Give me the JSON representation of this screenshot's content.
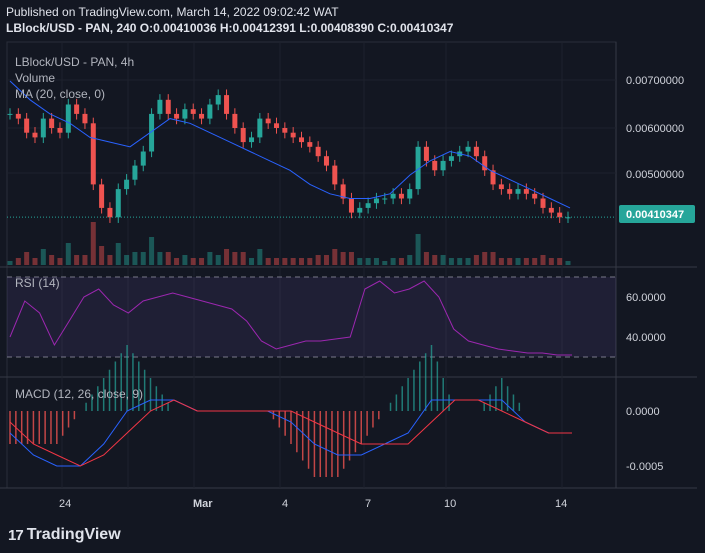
{
  "header": {
    "published": "Published on TradingView.com, March 14, 2022 09:02:42 WAT",
    "ohlc": "LBlock/USD - PAN, 240 O:0.00410036 H:0.00412391 L:0.00408390 C:0.00410347"
  },
  "footer": {
    "brand": "TradingView"
  },
  "colors": {
    "up": "#26a69a",
    "down": "#ef5350",
    "ma": "#2962ff",
    "rsi": "#9c27b0",
    "macd": "#2962ff",
    "signal": "#f23645"
  },
  "chart_data": {
    "type": "candlestick",
    "legend": {
      "symbol": "LBlock/USD - PAN, 4h",
      "volume": "Volume",
      "ma": "MA (20, close, 0)",
      "rsi": "RSI (14)",
      "macd": "MACD (12, 26, close, 9)"
    },
    "price_ticks": [
      "0.00700000",
      "0.00600000",
      "0.00500000"
    ],
    "price_tick_values": [
      0.007,
      0.006,
      0.005
    ],
    "last_price": "0.00410347",
    "last_price_value": 0.00410347,
    "rsi_ticks": [
      "60.0000",
      "40.0000"
    ],
    "rsi_bands": [
      70,
      30
    ],
    "macd_ticks": [
      "0.0000",
      "-0.0005"
    ],
    "x_ticks": [
      "24",
      "Mar",
      "4",
      "7",
      "10",
      "14"
    ],
    "close_path": [
      0.0063,
      0.0062,
      0.0059,
      0.0058,
      0.0062,
      0.006,
      0.0059,
      0.0065,
      0.0063,
      0.0061,
      0.0048,
      0.0043,
      0.0041,
      0.0047,
      0.0049,
      0.0052,
      0.0055,
      0.0063,
      0.0066,
      0.0063,
      0.0062,
      0.0064,
      0.0063,
      0.0062,
      0.0065,
      0.0067,
      0.0063,
      0.006,
      0.0057,
      0.0058,
      0.0062,
      0.0061,
      0.006,
      0.0059,
      0.0058,
      0.0057,
      0.0056,
      0.0054,
      0.0052,
      0.0048,
      0.0045,
      0.0042,
      0.0043,
      0.0044,
      0.0045,
      0.0045,
      0.0046,
      0.0045,
      0.0047,
      0.0056,
      0.0053,
      0.0051,
      0.0053,
      0.0054,
      0.0055,
      0.0056,
      0.0054,
      0.0051,
      0.0048,
      0.0047,
      0.0046,
      0.0047,
      0.0046,
      0.0045,
      0.0043,
      0.0042,
      0.0041,
      0.0041
    ],
    "ma_path": [
      0.007,
      0.0066,
      0.0063,
      0.0061,
      0.0058,
      0.0057,
      0.0056,
      0.0059,
      0.0062,
      0.0061,
      0.0059,
      0.0057,
      0.0055,
      0.0053,
      0.0051,
      0.0048,
      0.0046,
      0.0045,
      0.0045,
      0.0046,
      0.005,
      0.0053,
      0.0055,
      0.0054,
      0.0051,
      0.0049,
      0.0047,
      0.0045,
      0.0043
    ],
    "rsi_path": [
      40,
      58,
      52,
      36,
      48,
      60,
      64,
      56,
      52,
      58,
      60,
      62,
      60,
      58,
      56,
      54,
      48,
      38,
      34,
      36,
      38,
      38,
      39,
      40,
      64,
      68,
      62,
      64,
      68,
      60,
      44,
      38,
      36,
      34,
      33,
      32,
      32,
      31,
      31
    ],
    "macd_path": [
      -0.0002,
      -0.0004,
      -0.0005,
      -0.0005,
      -0.0003,
      0.0,
      0.0001,
      0.0001,
      0.0,
      0.0,
      0.0,
      0.0,
      -0.0001,
      -0.0003,
      -0.0004,
      -0.0004,
      -0.0003,
      -0.0002,
      0.0001,
      0.0001,
      0.0001,
      0.0001,
      -0.0001,
      -0.0002,
      -0.0002
    ],
    "signal_path": [
      -0.0001,
      -0.0003,
      -0.0004,
      -0.0005,
      -0.0004,
      -0.0002,
      0.0,
      0.0001,
      0.0,
      0.0,
      0.0,
      0.0,
      0.0,
      -0.0001,
      -0.0002,
      -0.0003,
      -0.0003,
      -0.0003,
      -0.0001,
      0.0001,
      0.0001,
      0.0,
      -0.0001,
      -0.0002,
      -0.0002
    ]
  }
}
